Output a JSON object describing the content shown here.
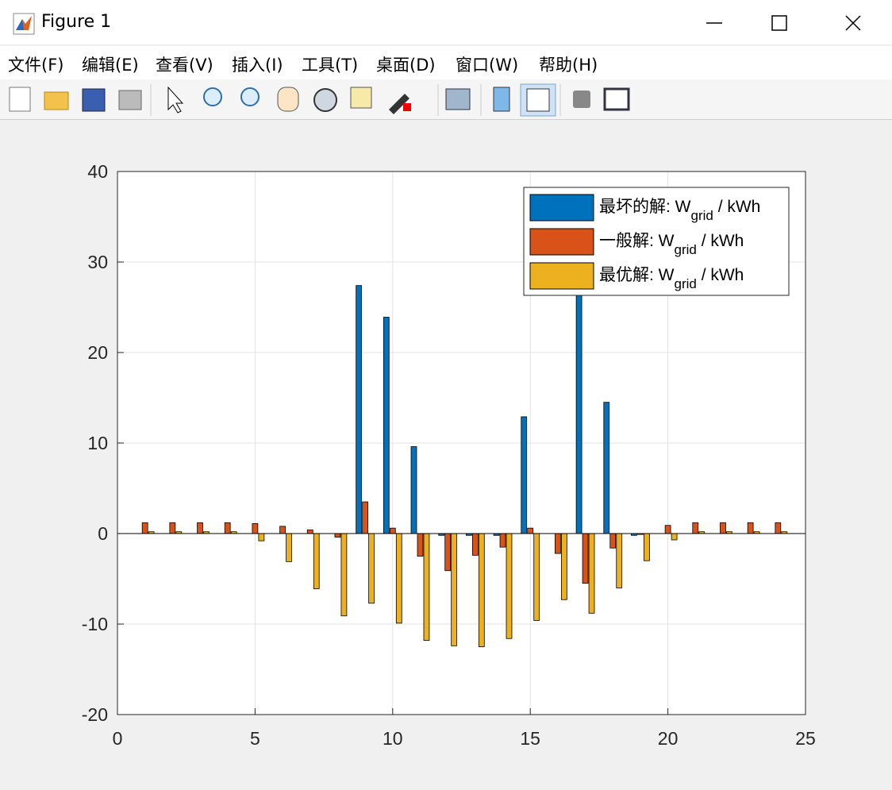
{
  "window": {
    "title": "Figure 1",
    "menu": [
      "文件(F)",
      "编辑(E)",
      "查看(V)",
      "插入(I)",
      "工具(T)",
      "桌面(D)",
      "窗口(W)",
      "帮助(H)"
    ]
  },
  "chart_data": {
    "type": "bar",
    "x": [
      1,
      2,
      3,
      4,
      5,
      6,
      7,
      8,
      9,
      10,
      11,
      12,
      13,
      14,
      15,
      16,
      17,
      18,
      19,
      20,
      21,
      22,
      23,
      24
    ],
    "series": [
      {
        "name": "最坏的解: Wgrid / kWh",
        "color": "#0072bd",
        "values": [
          0,
          0,
          0,
          0,
          0,
          0,
          0,
          0,
          27.4,
          23.9,
          9.6,
          -0.2,
          -0.2,
          -0.2,
          12.9,
          0,
          28,
          14.5,
          -0.2,
          0,
          0,
          0,
          0,
          0
        ]
      },
      {
        "name": "一般解: Wgrid / kWh",
        "color": "#d95319",
        "values": [
          1.2,
          1.2,
          1.2,
          1.2,
          1.1,
          0.8,
          0.4,
          -0.4,
          3.5,
          0.6,
          -2.5,
          -4.1,
          -2.4,
          -1.5,
          0.6,
          -2.2,
          -5.5,
          -1.6,
          -0.1,
          0.9,
          1.2,
          1.2,
          1.2,
          1.2
        ]
      },
      {
        "name": "最优解: Wgrid / kWh",
        "color": "#edb120",
        "values": [
          0.2,
          0.2,
          0.2,
          0.2,
          -0.8,
          -3.1,
          -6.1,
          -9.1,
          -7.7,
          -9.9,
          -11.8,
          -12.4,
          -12.5,
          -11.6,
          -9.6,
          -7.3,
          -8.8,
          -6.0,
          -3.0,
          -0.7,
          0.2,
          0.2,
          0.2,
          0.2
        ]
      }
    ],
    "xlim": [
      0,
      25
    ],
    "xticks": [
      0,
      5,
      10,
      15,
      20,
      25
    ],
    "ylim": [
      -20,
      40
    ],
    "yticks": [
      -20,
      -10,
      0,
      10,
      20,
      30,
      40
    ],
    "grid": true,
    "legend": "upper right"
  }
}
